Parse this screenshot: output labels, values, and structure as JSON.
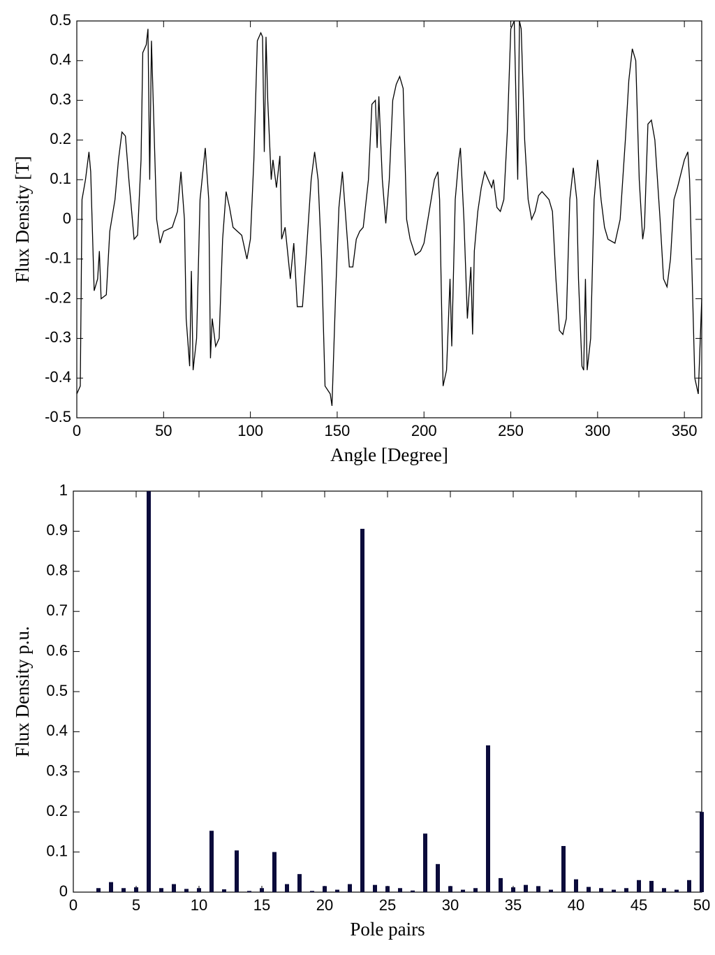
{
  "chart_data": [
    {
      "type": "line",
      "xlabel": "Angle [Degree]",
      "ylabel": "Flux Density [T]",
      "xlim": [
        0,
        360
      ],
      "ylim": [
        -0.5,
        0.5
      ],
      "xticks": [
        0,
        50,
        100,
        150,
        200,
        250,
        300,
        350
      ],
      "yticks": [
        -0.5,
        -0.4,
        -0.3,
        -0.2,
        -0.1,
        0,
        0.1,
        0.2,
        0.3,
        0.4,
        0.5
      ],
      "color": "#000000",
      "x": [
        0,
        2,
        3,
        5,
        7,
        8,
        10,
        12,
        13,
        14,
        17,
        19,
        22,
        24,
        26,
        28,
        30,
        33,
        35,
        37,
        38,
        40,
        41,
        42,
        43,
        44,
        46,
        48,
        50,
        55,
        58,
        60,
        62,
        63,
        65,
        66,
        67,
        69,
        71,
        74,
        76,
        77,
        78,
        80,
        82,
        84,
        86,
        88,
        90,
        95,
        98,
        100,
        102,
        104,
        106,
        107,
        108,
        109,
        110,
        112,
        113,
        115,
        117,
        118,
        120,
        123,
        125,
        127,
        130,
        132,
        135,
        137,
        139,
        141,
        143,
        146,
        147,
        149,
        151,
        153,
        155,
        157,
        159,
        161,
        163,
        165,
        168,
        170,
        172,
        173,
        174,
        176,
        178,
        180,
        182,
        184,
        186,
        188,
        190,
        192,
        195,
        198,
        200,
        203,
        206,
        208,
        209,
        211,
        213,
        215,
        216,
        218,
        220,
        221,
        223,
        225,
        227,
        228,
        229,
        231,
        233,
        235,
        237,
        239,
        240,
        242,
        244,
        246,
        248,
        250,
        252,
        254,
        255,
        256,
        258,
        260,
        262,
        264,
        266,
        268,
        270,
        272,
        274,
        276,
        278,
        280,
        282,
        284,
        286,
        288,
        289,
        291,
        292,
        293,
        294,
        296,
        298,
        300,
        302,
        304,
        306,
        310,
        313,
        316,
        318,
        320,
        322,
        324,
        326,
        327,
        329,
        331,
        333,
        336,
        338,
        340,
        342,
        344,
        346,
        350,
        352,
        353,
        356,
        358,
        360
      ],
      "values": [
        -0.44,
        -0.42,
        0.05,
        0.1,
        0.17,
        0.12,
        -0.18,
        -0.15,
        -0.08,
        -0.2,
        -0.19,
        -0.03,
        0.05,
        0.15,
        0.22,
        0.21,
        0.1,
        -0.05,
        -0.04,
        0.15,
        0.42,
        0.44,
        0.48,
        0.1,
        0.45,
        0.3,
        0.0,
        -0.06,
        -0.03,
        -0.02,
        0.02,
        0.12,
        0.0,
        -0.25,
        -0.37,
        -0.13,
        -0.38,
        -0.3,
        0.05,
        0.18,
        0.05,
        -0.35,
        -0.25,
        -0.32,
        -0.3,
        -0.05,
        0.07,
        0.03,
        -0.02,
        -0.04,
        -0.1,
        -0.05,
        0.15,
        0.45,
        0.47,
        0.46,
        0.17,
        0.46,
        0.3,
        0.1,
        0.15,
        0.08,
        0.16,
        -0.05,
        -0.02,
        -0.15,
        -0.06,
        -0.22,
        -0.22,
        -0.1,
        0.1,
        0.17,
        0.1,
        -0.1,
        -0.42,
        -0.44,
        -0.47,
        -0.2,
        0.03,
        0.12,
        0.0,
        -0.12,
        -0.12,
        -0.05,
        -0.03,
        -0.02,
        0.1,
        0.29,
        0.3,
        0.18,
        0.31,
        0.1,
        -0.01,
        0.1,
        0.3,
        0.34,
        0.36,
        0.33,
        0.0,
        -0.05,
        -0.09,
        -0.08,
        -0.06,
        0.02,
        0.1,
        0.12,
        0.05,
        -0.42,
        -0.38,
        -0.15,
        -0.32,
        0.05,
        0.15,
        0.18,
        0.0,
        -0.25,
        -0.12,
        -0.29,
        -0.08,
        0.02,
        0.08,
        0.12,
        0.1,
        0.08,
        0.1,
        0.03,
        0.02,
        0.05,
        0.22,
        0.48,
        0.5,
        0.1,
        0.5,
        0.48,
        0.2,
        0.05,
        0.0,
        0.02,
        0.06,
        0.07,
        0.06,
        0.05,
        0.02,
        -0.15,
        -0.28,
        -0.29,
        -0.25,
        0.05,
        0.13,
        0.05,
        -0.15,
        -0.37,
        -0.38,
        -0.15,
        -0.38,
        -0.3,
        0.05,
        0.15,
        0.05,
        -0.02,
        -0.05,
        -0.06,
        0.0,
        0.2,
        0.35,
        0.43,
        0.4,
        0.1,
        -0.05,
        -0.02,
        0.24,
        0.25,
        0.2,
        0.0,
        -0.15,
        -0.17,
        -0.1,
        0.05,
        0.08,
        0.15,
        0.17,
        0.1,
        -0.4,
        -0.44,
        -0.2
      ]
    },
    {
      "type": "bar",
      "xlabel": "Pole pairs",
      "ylabel": "Flux Density p.u.",
      "xlim": [
        0,
        50
      ],
      "ylim": [
        0,
        1
      ],
      "xticks": [
        0,
        5,
        10,
        15,
        20,
        25,
        30,
        35,
        40,
        45,
        50
      ],
      "yticks": [
        0,
        0.1,
        0.2,
        0.3,
        0.4,
        0.5,
        0.6,
        0.7,
        0.8,
        0.9,
        1
      ],
      "color": "#0b0b3b",
      "x": [
        2,
        3,
        4,
        5,
        6,
        7,
        8,
        9,
        10,
        11,
        12,
        13,
        14,
        15,
        16,
        17,
        18,
        19,
        20,
        21,
        22,
        23,
        24,
        25,
        26,
        27,
        28,
        29,
        30,
        31,
        32,
        33,
        34,
        35,
        36,
        37,
        38,
        39,
        40,
        41,
        42,
        43,
        44,
        45,
        46,
        47,
        48,
        49,
        50
      ],
      "values": [
        0.01,
        0.025,
        0.01,
        0.012,
        1.0,
        0.01,
        0.02,
        0.008,
        0.01,
        0.153,
        0.007,
        0.104,
        0.003,
        0.01,
        0.1,
        0.02,
        0.045,
        0.003,
        0.015,
        0.006,
        0.02,
        0.906,
        0.018,
        0.015,
        0.01,
        0.004,
        0.146,
        0.07,
        0.015,
        0.006,
        0.01,
        0.366,
        0.035,
        0.012,
        0.018,
        0.015,
        0.006,
        0.115,
        0.032,
        0.013,
        0.01,
        0.006,
        0.01,
        0.03,
        0.028,
        0.01,
        0.006,
        0.03,
        0.2
      ]
    }
  ]
}
